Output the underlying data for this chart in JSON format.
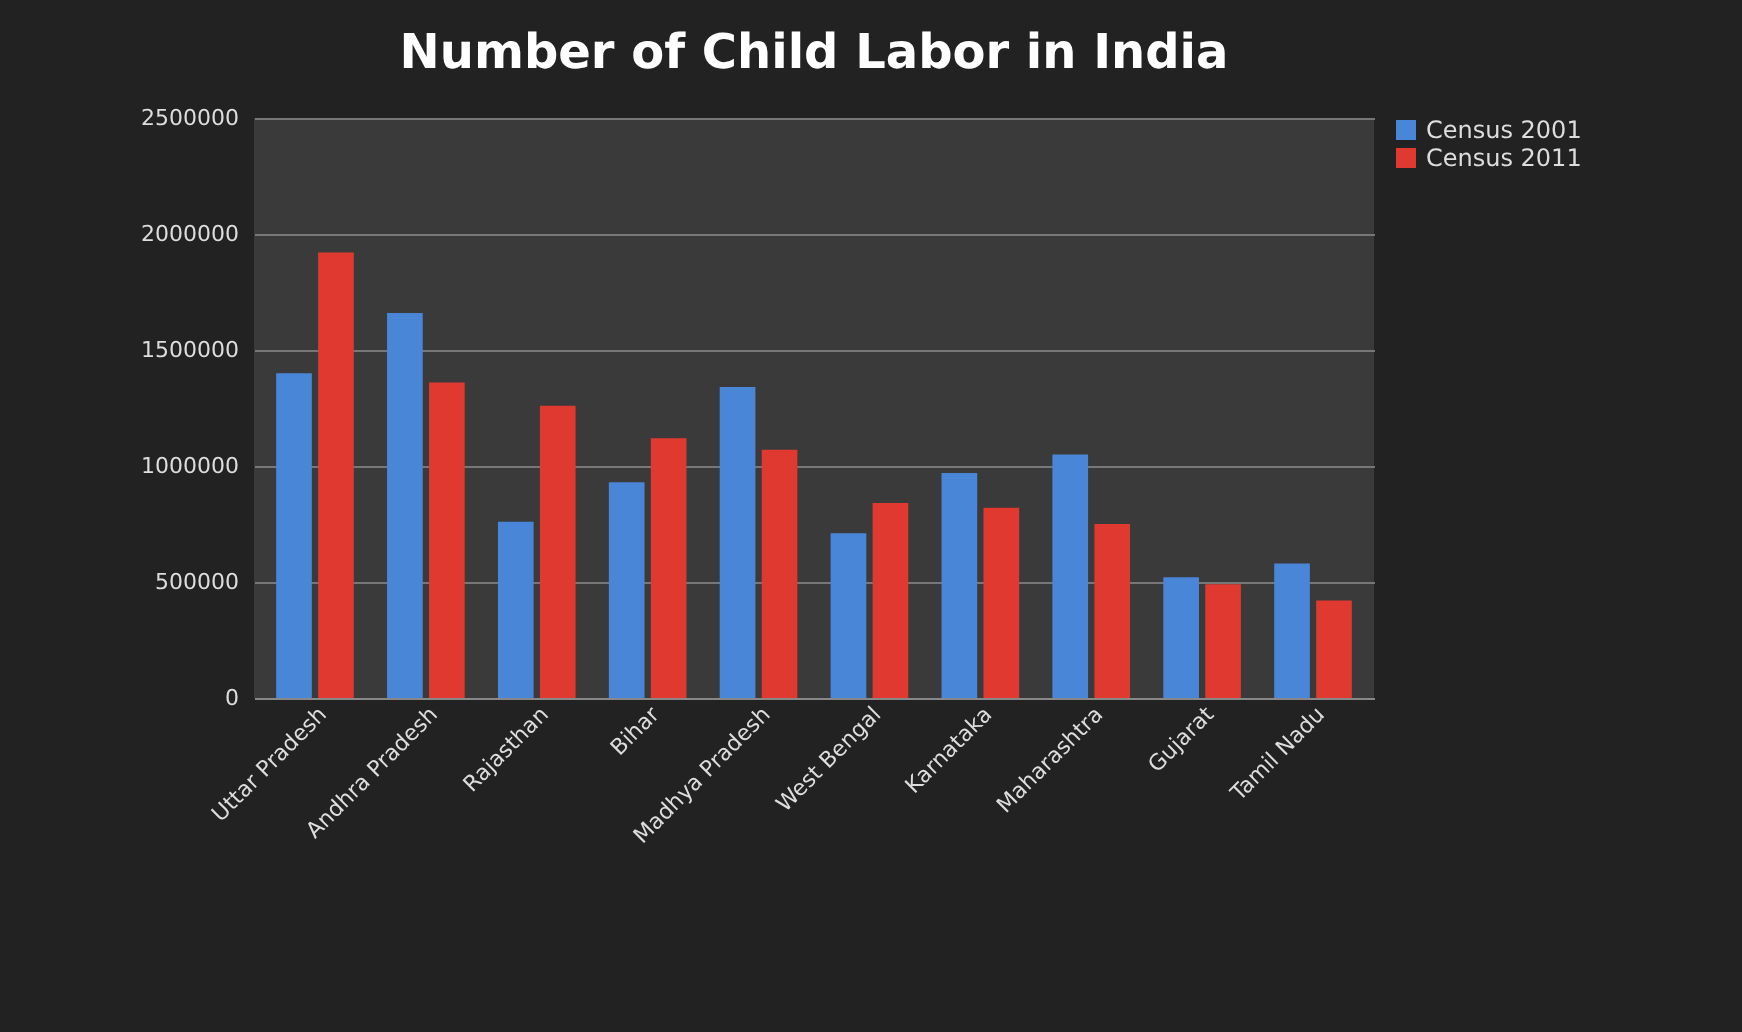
{
  "chart_data": {
    "type": "bar",
    "title": "Number of Child Labor in India",
    "categories": [
      "Uttar Pradesh",
      "Andhra Pradesh",
      "Rajasthan",
      "Bihar",
      "Madhya Pradesh",
      "West Bengal",
      "Karnataka",
      "Maharashtra",
      "Gujarat",
      "Tamil Nadu"
    ],
    "series": [
      {
        "name": "Census 2001",
        "color": "#4a86d8",
        "values": [
          1400000,
          1660000,
          760000,
          930000,
          1340000,
          710000,
          970000,
          1050000,
          520000,
          580000
        ]
      },
      {
        "name": "Census 2011",
        "color": "#e03a30",
        "values": [
          1920000,
          1360000,
          1260000,
          1120000,
          1070000,
          840000,
          820000,
          750000,
          490000,
          420000
        ]
      }
    ],
    "ylim": [
      0,
      2500000
    ],
    "yticks": [
      0,
      500000,
      1000000,
      1500000,
      2000000,
      2500000
    ],
    "grid": true,
    "legend": "right"
  }
}
